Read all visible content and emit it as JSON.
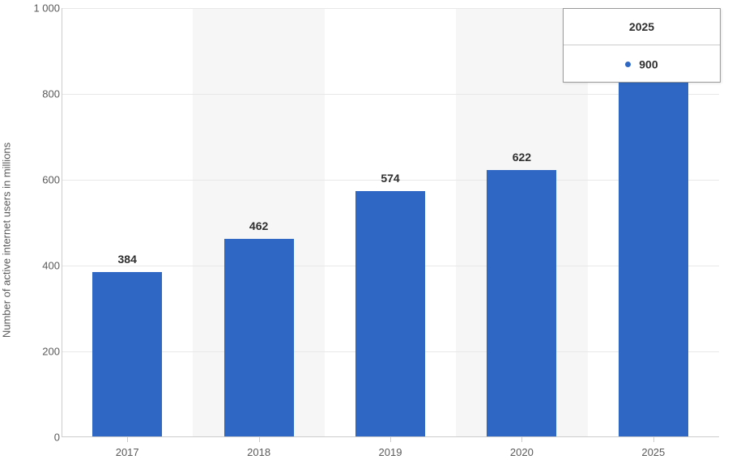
{
  "chart": {
    "type": "bar",
    "y_axis_label": "Number of active internet users in millions",
    "categories": [
      "2017",
      "2018",
      "2019",
      "2020",
      "2025"
    ],
    "values": [
      384,
      462,
      574,
      622,
      900
    ],
    "bar_color": "#2f68c4",
    "bar_width_ratio": 0.53,
    "ylim": [
      0,
      1000
    ],
    "y_ticks": [
      0,
      200,
      400,
      600,
      800,
      1000
    ],
    "y_tick_labels": [
      "0",
      "200",
      "400",
      "600",
      "800",
      "1 000"
    ],
    "background_color": "#ffffff",
    "alt_band_color": "#f6f6f6",
    "grid_color": "#e8e8e8",
    "axis_line_color": "#cccccc",
    "text_color": "#5a5a5a",
    "label_fontsize": 13,
    "value_fontsize": 14
  },
  "tooltip": {
    "title": "2025",
    "bullet_color": "#2f68c4",
    "value": "900",
    "border_color": "#999999"
  }
}
